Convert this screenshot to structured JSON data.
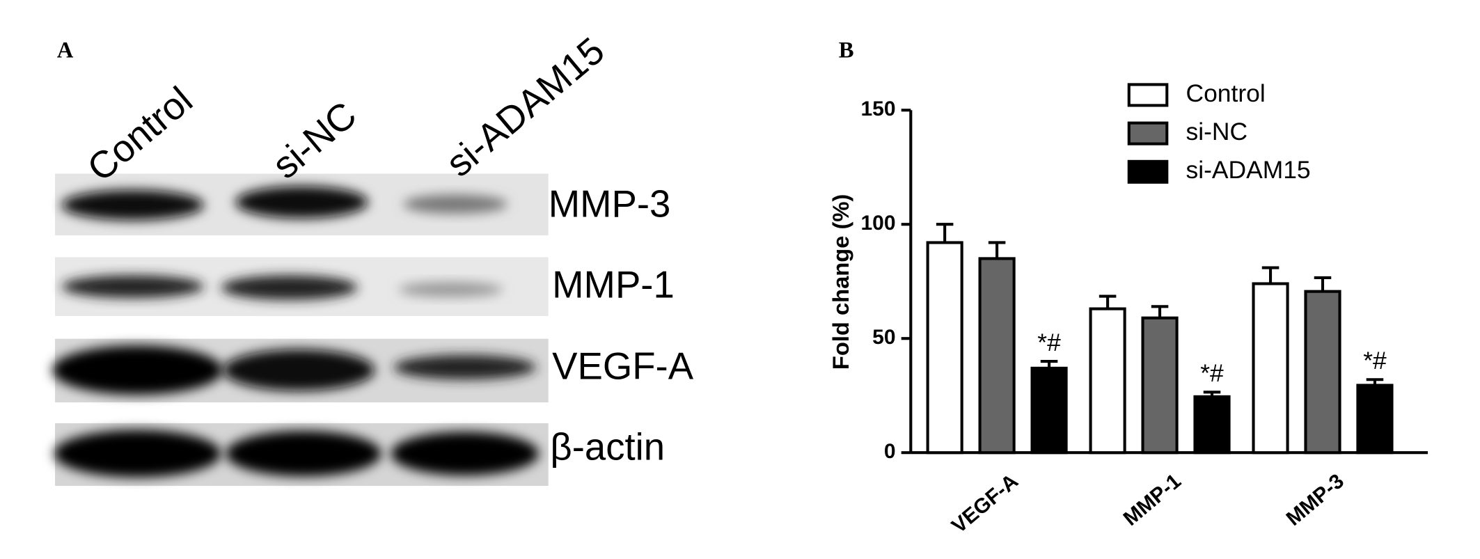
{
  "panel_labels": [
    "A",
    "B"
  ],
  "blot": {
    "lanes": [
      "Control",
      "si-NC",
      "si-ADAM15"
    ],
    "proteins": [
      "MMP-3",
      "MMP-1",
      "VEGF-A",
      "β-actin"
    ]
  },
  "chart_data": {
    "type": "bar",
    "ylabel": "Fold change (%)",
    "categories": [
      "VEGF-A",
      "MMP-1",
      "MMP-3"
    ],
    "series": [
      {
        "name": "Control",
        "color": "#ffffff",
        "values": [
          92,
          63,
          74
        ],
        "errors": [
          8,
          5.5,
          7
        ]
      },
      {
        "name": "si-NC",
        "color": "#666666",
        "values": [
          85,
          59,
          70.6
        ],
        "errors": [
          7,
          5,
          6
        ]
      },
      {
        "name": "si-ADAM15",
        "color": "#000000",
        "values": [
          37,
          24.5,
          29.5
        ],
        "errors": [
          3,
          2,
          2.5
        ]
      }
    ],
    "annotations": [
      "*#",
      "*#",
      "*#"
    ],
    "ylim": [
      0,
      150
    ],
    "yticks": [
      0,
      50,
      100,
      150
    ],
    "legend": "top-right"
  }
}
